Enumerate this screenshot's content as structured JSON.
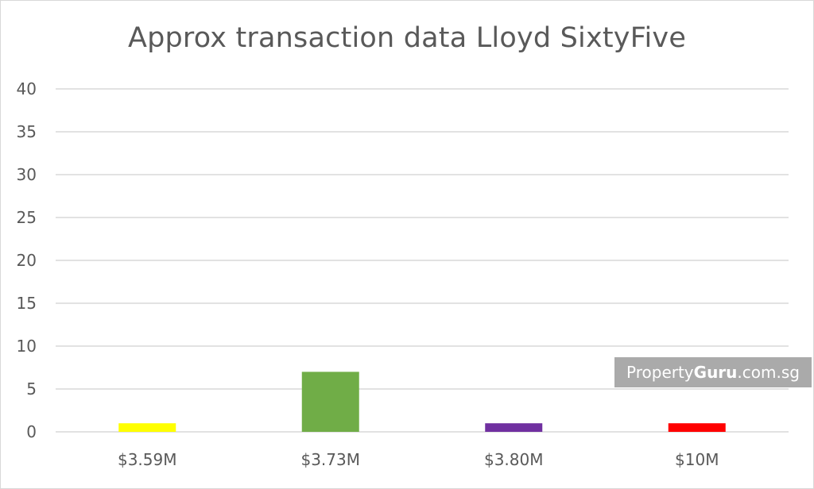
{
  "chart_data": {
    "type": "bar",
    "title": "Approx transaction data Lloyd SixtyFive",
    "categories": [
      "$3.59M",
      "$3.73M",
      "$3.80M",
      "$10M"
    ],
    "values": [
      1,
      7,
      1,
      1
    ],
    "colors": [
      "#ffff00",
      "#70ad47",
      "#7030a0",
      "#ff0000"
    ],
    "ylim": [
      0,
      40
    ],
    "yticks": [
      "0",
      "5",
      "10",
      "15",
      "20",
      "25",
      "30",
      "35",
      "40"
    ],
    "xlabel": "",
    "ylabel": "",
    "grid": true
  },
  "watermark": {
    "prefix": "Property",
    "brand": "Guru",
    "suffix": ".com.sg"
  }
}
